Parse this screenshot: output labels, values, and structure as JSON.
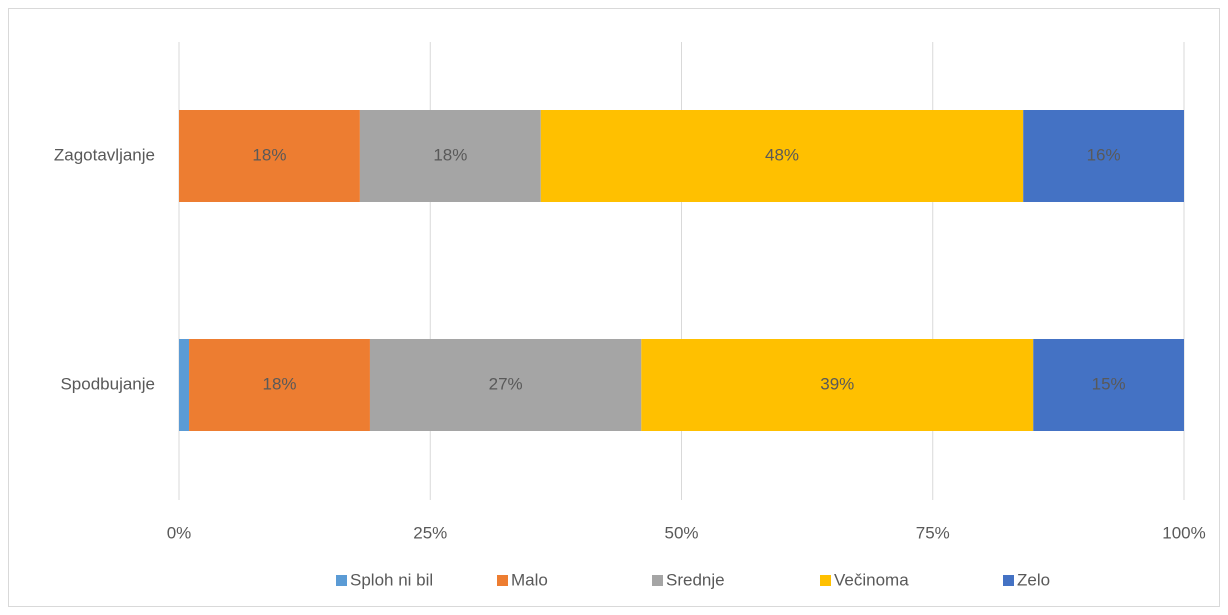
{
  "chart_data": {
    "type": "stacked-bar-horizontal",
    "categories": [
      "Zagotavljanje",
      "Spodbujanje"
    ],
    "series": [
      {
        "name": "Sploh ni bil",
        "color": "#5b9bd5",
        "values": [
          0,
          1
        ],
        "value_labels": [
          null,
          null
        ]
      },
      {
        "name": "Malo",
        "color": "#ed7d31",
        "values": [
          18,
          18
        ],
        "value_labels": [
          "18%",
          "18%"
        ]
      },
      {
        "name": "Srednje",
        "color": "#a5a5a5",
        "values": [
          18,
          27
        ],
        "value_labels": [
          "18%",
          "27%"
        ]
      },
      {
        "name": "Večinoma",
        "color": "#ffc000",
        "values": [
          48,
          39
        ],
        "value_labels": [
          "48%",
          "39%"
        ]
      },
      {
        "name": "Zelo",
        "color": "#4472c4",
        "values": [
          16,
          15
        ],
        "value_labels": [
          "16%",
          "15%"
        ]
      }
    ],
    "xlim": [
      0,
      100
    ],
    "xticks": [
      {
        "value": 0,
        "label": "0%"
      },
      {
        "value": 25,
        "label": "25%"
      },
      {
        "value": 50,
        "label": "50%"
      },
      {
        "value": 75,
        "label": "75%"
      },
      {
        "value": 100,
        "label": "100%"
      }
    ],
    "grid": true,
    "legend": "bottom"
  }
}
